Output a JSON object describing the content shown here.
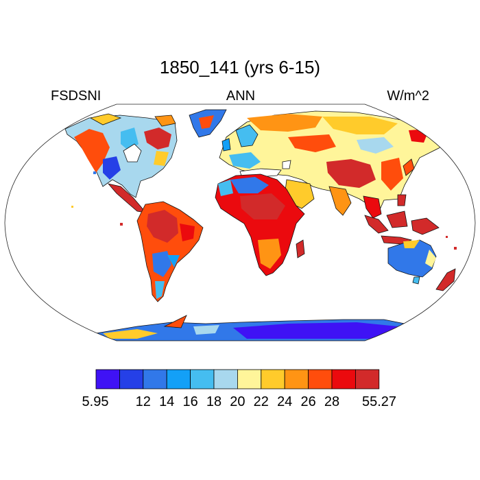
{
  "title": "1850_141 (yrs 6-15)",
  "left_label": "FSDSNI",
  "center_label": "ANN",
  "right_label": "W/m^2",
  "colorbar": {
    "colors": [
      "#3f12f5",
      "#2540e7",
      "#3178e9",
      "#13a0f7",
      "#45bdf0",
      "#a8d8ee",
      "#fff59a",
      "#ffcb2b",
      "#ff9414",
      "#ff4d0c",
      "#eb0a0e",
      "#d22a2a"
    ],
    "tick_labels": [
      "5.95",
      "12",
      "14",
      "16",
      "18",
      "20",
      "22",
      "24",
      "26",
      "28",
      "55.27"
    ]
  },
  "colors": {
    "ocean": "#ffffff",
    "coastline": "#111111"
  }
}
